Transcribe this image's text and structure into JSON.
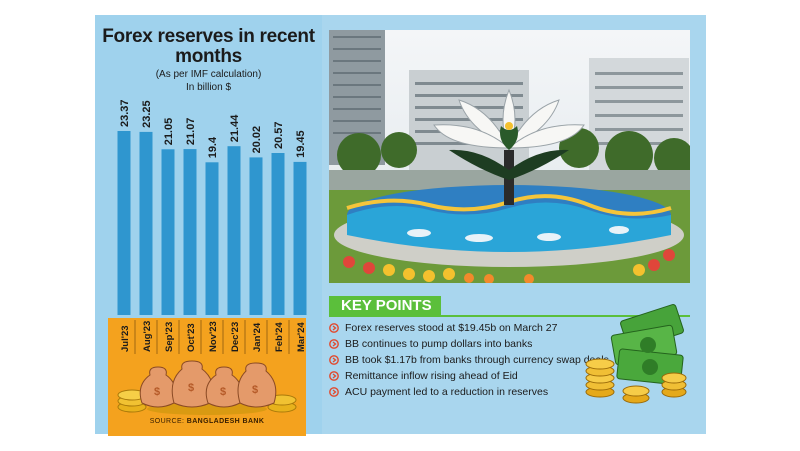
{
  "title": "Forex reserves in recent months",
  "subtitle": "(As per IMF calculation)",
  "unit": "In billion $",
  "colors": {
    "bar": "#2f96cf",
    "panel": "#9fd2ed",
    "band": "#f4a21e",
    "key_header": "#5bbf3b",
    "bullet": "#e2482c"
  },
  "chart_data": {
    "type": "bar",
    "title": "Forex reserves in recent months",
    "subtitle": "(As per IMF calculation)",
    "ylabel": "In billion $",
    "categories": [
      "Jul'23",
      "Aug'23",
      "Sep'23",
      "Oct'23",
      "Nov'23",
      "Dec'23",
      "Jan'24",
      "Feb'24",
      "Mar'24"
    ],
    "values": [
      23.37,
      23.25,
      21.05,
      21.07,
      19.4,
      21.44,
      20.02,
      20.57,
      19.45
    ],
    "value_labels": [
      "23.37",
      "23.25",
      "21.05",
      "21.07",
      "19.4",
      "21.44",
      "20.02",
      "20.57",
      "19.45"
    ],
    "ylim": [
      0,
      23.37
    ],
    "grid": false,
    "legend": "none"
  },
  "key_points": {
    "header": "KEY POINTS",
    "items": [
      "Forex reserves stood at $19.45b on March 27",
      "BB continues to pump dollars into banks",
      "BB took $1.17b from banks through currency swap deals",
      "Remittance inflow rising ahead of Eid",
      "ACU payment led to a reduction in reserves"
    ]
  },
  "source": {
    "label": "SOURCE:",
    "name": "BANGLADESH BANK"
  }
}
